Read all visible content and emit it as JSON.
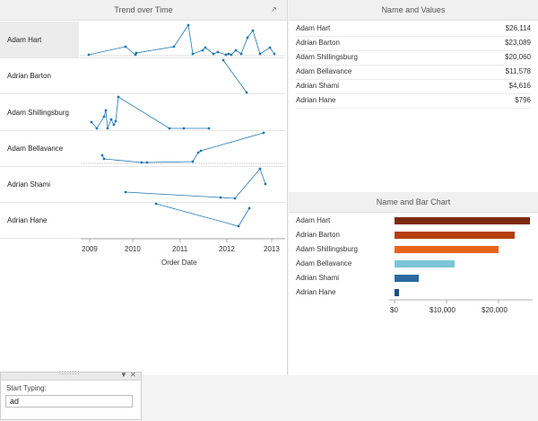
{
  "trend_panel": {
    "title": "Trend over Time",
    "names": [
      "Adam Hart",
      "Adrian Barton",
      "Adam Shillingsburg",
      "Adam Bellavance",
      "Adrian Shami",
      "Adrian Hane"
    ],
    "x_ticks": [
      "2009",
      "2010",
      "2011",
      "2012",
      "2013"
    ],
    "x_label": "Order Date"
  },
  "values_panel": {
    "title": "Name and Values",
    "rows": [
      {
        "name": "Adam Hart",
        "value": "$26,114"
      },
      {
        "name": "Adrian Barton",
        "value": "$23,089"
      },
      {
        "name": "Adam Shillingsburg",
        "value": "$20,060"
      },
      {
        "name": "Adam Bellavance",
        "value": "$11,578"
      },
      {
        "name": "Adrian Shami",
        "value": "$4,616"
      },
      {
        "name": "Adrian Hane",
        "value": "$796"
      }
    ]
  },
  "bar_panel": {
    "title": "Name and Bar Chart",
    "ticks": [
      "$0",
      "$10,000",
      "$20,000"
    ]
  },
  "filter": {
    "label": "Start Typing:",
    "value": "ad"
  },
  "chart_data": [
    {
      "type": "bar",
      "title": "Name and Bar Chart",
      "categories": [
        "Adam Hart",
        "Adrian Barton",
        "Adam Shillingsburg",
        "Adam Bellavance",
        "Adrian Shami",
        "Adrian Hane"
      ],
      "values": [
        26114,
        23089,
        20060,
        11578,
        4616,
        796
      ],
      "colors": [
        "#7b2a12",
        "#b53e10",
        "#e8641b",
        "#7cc4d6",
        "#2a6aa0",
        "#1d4e86"
      ],
      "xlim": [
        0,
        27000
      ],
      "orientation": "horizontal"
    }
  ],
  "colors": {
    "line": "#1f77b4",
    "highlight_row": "#ececec"
  }
}
